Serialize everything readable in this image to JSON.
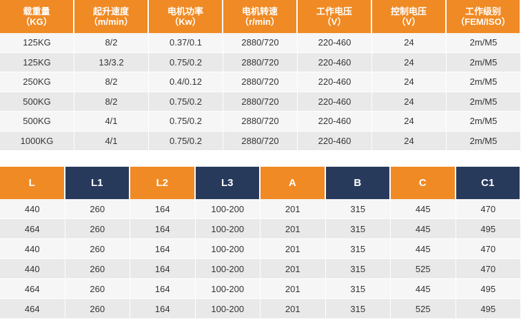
{
  "table1": {
    "header": [
      [
        "载重量",
        "（KG）"
      ],
      [
        "起升速度",
        "（m/min）"
      ],
      [
        "电机功率",
        "（Kw）"
      ],
      [
        "电机转速",
        "（r/min）"
      ],
      [
        "工作电压",
        "（V）"
      ],
      [
        "控制电压",
        "（V）"
      ],
      [
        "工作级别",
        "（FEM/ISO）"
      ]
    ],
    "rows": [
      [
        "125KG",
        "8/2",
        "0.37/0.1",
        "2880/720",
        "220-460",
        "24",
        "2m/M5"
      ],
      [
        "125KG",
        "13/3.2",
        "0.75/0.2",
        "2880/720",
        "220-460",
        "24",
        "2m/M5"
      ],
      [
        "250KG",
        "8/2",
        "0.4/0.12",
        "2880/720",
        "220-460",
        "24",
        "2m/M5"
      ],
      [
        "500KG",
        "8/2",
        "0.75/0.2",
        "2880/720",
        "220-460",
        "24",
        "2m/M5"
      ],
      [
        "500KG",
        "4/1",
        "0.75/0.2",
        "2880/720",
        "220-460",
        "24",
        "2m/M5"
      ],
      [
        "1000KG",
        "4/1",
        "0.75/0.2",
        "2880/720",
        "220-460",
        "24",
        "2m/M5"
      ]
    ]
  },
  "table2": {
    "header": [
      "L",
      "L1",
      "L2",
      "L3",
      "A",
      "B",
      "C",
      "C1"
    ],
    "rows": [
      [
        "440",
        "260",
        "164",
        "100-200",
        "201",
        "315",
        "445",
        "470"
      ],
      [
        "464",
        "260",
        "164",
        "100-200",
        "201",
        "315",
        "445",
        "495"
      ],
      [
        "440",
        "260",
        "164",
        "100-200",
        "201",
        "315",
        "445",
        "470"
      ],
      [
        "440",
        "260",
        "164",
        "100-200",
        "201",
        "315",
        "525",
        "470"
      ],
      [
        "464",
        "260",
        "164",
        "100-200",
        "201",
        "315",
        "445",
        "495"
      ],
      [
        "464",
        "260",
        "164",
        "100-200",
        "201",
        "315",
        "525",
        "495"
      ]
    ]
  }
}
